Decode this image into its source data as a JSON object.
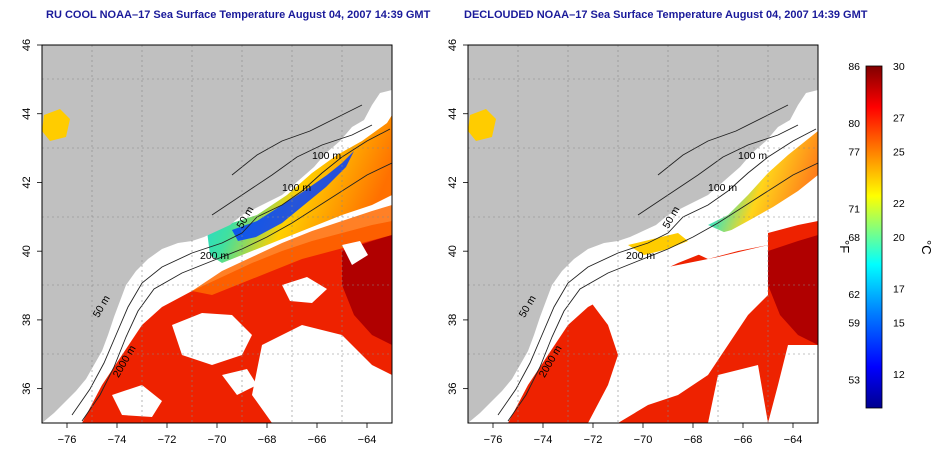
{
  "panels": [
    {
      "title": "RU COOL NOAA–17 Sea Surface Temperature August 04, 2007 14:39 GMT",
      "contour_labels": [
        "100 m",
        "100 m",
        "50 m",
        "200 m",
        "50 m",
        "2000 m"
      ],
      "clouds": "visible (white)"
    },
    {
      "title": "DECLOUDED NOAA–17 Sea Surface Temperature August 04, 2007 14:39 GMT",
      "contour_labels": [
        "100 m",
        "100 m",
        "50 m",
        "200 m",
        "50 m",
        "2000 m"
      ],
      "clouds": "removed"
    }
  ],
  "axes": {
    "lon_ticks": [
      "−76",
      "−74",
      "−72",
      "−70",
      "−68",
      "−66",
      "−64"
    ],
    "lat_ticks": [
      "36",
      "38",
      "40",
      "42",
      "44",
      "46"
    ],
    "lon_range": [
      -77,
      -63
    ],
    "lat_range": [
      35,
      46
    ],
    "grid": "dotted"
  },
  "colorbar": {
    "fahrenheit_ticks": [
      "86",
      "80",
      "77",
      "71",
      "68",
      "62",
      "59",
      "53"
    ],
    "celsius_ticks": [
      "30",
      "27",
      "25",
      "22",
      "20",
      "17",
      "15",
      "12"
    ],
    "fahrenheit_unit": "°F",
    "celsius_unit": "°C",
    "range_c": [
      10,
      30
    ],
    "colors": [
      "#00008f",
      "#0000ff",
      "#0080ff",
      "#00ffff",
      "#80ff80",
      "#ffff00",
      "#ff8000",
      "#ff0000",
      "#800000"
    ]
  },
  "colors": {
    "land": "#c0c0c0",
    "ocean_nodata": "#ffffff",
    "title": "#1a1a9a"
  }
}
